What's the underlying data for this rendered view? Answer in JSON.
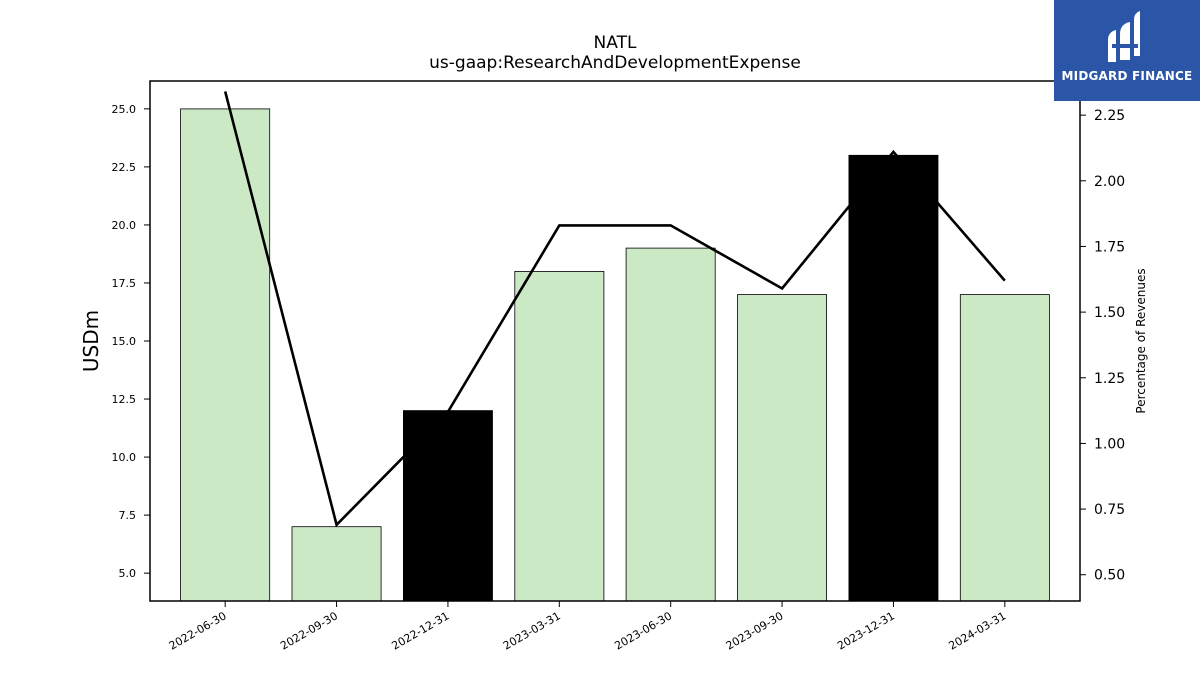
{
  "brand": {
    "name": "MIDGARD FINANCE",
    "bg_color": "#2b55a6",
    "icon": "midgard-logo-icon"
  },
  "chart_data": {
    "type": "bar",
    "title": "NATL",
    "subtitle": "us-gaap:ResearchAndDevelopmentExpense",
    "ylabel": "USDm",
    "y2label": "Percentage of Revenues",
    "categories": [
      "2022-06-30",
      "2022-09-30",
      "2022-12-31",
      "2023-03-31",
      "2023-06-30",
      "2023-09-30",
      "2023-12-31",
      "2024-03-31"
    ],
    "series": [
      {
        "values": [
          25.0,
          7.0,
          12.0,
          18.0,
          19.0,
          17.0,
          23.0,
          17.0
        ],
        "colors": [
          "#cce9c6",
          "#cce9c6",
          "#000000",
          "#cce9c6",
          "#cce9c6",
          "#cce9c6",
          "#000000",
          "#cce9c6"
        ],
        "axis": "left"
      },
      {
        "type": "line",
        "values": [
          2.34,
          0.69,
          1.12,
          1.83,
          1.83,
          1.59,
          2.11,
          1.62
        ],
        "color": "#000000",
        "axis": "right"
      }
    ],
    "ylim": [
      3.8,
      26.2
    ],
    "y2lim": [
      0.4,
      2.38
    ],
    "yticks": [
      5.0,
      7.5,
      10.0,
      12.5,
      15.0,
      17.5,
      20.0,
      22.5,
      25.0
    ],
    "y2ticks": [
      0.5,
      0.75,
      1.0,
      1.25,
      1.5,
      1.75,
      2.0,
      2.25
    ],
    "grid": false,
    "legend": "none"
  }
}
